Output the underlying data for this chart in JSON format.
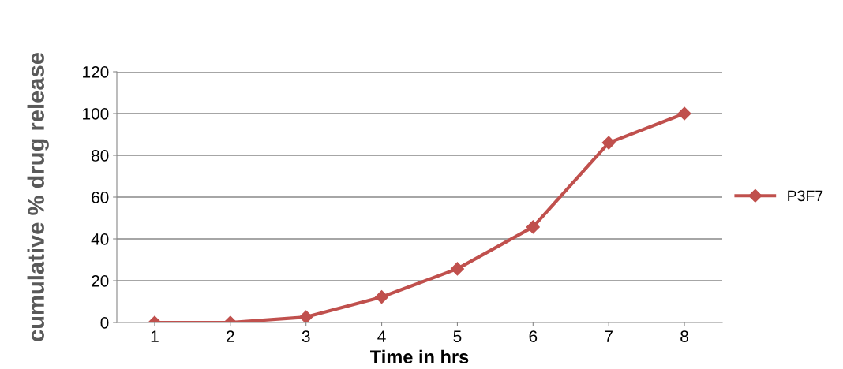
{
  "chart_data": {
    "type": "line",
    "categories": [
      "1",
      "2",
      "3",
      "4",
      "5",
      "6",
      "7",
      "8"
    ],
    "xlabel": "Time in hrs",
    "ylabel": "cumulative % drug release",
    "series": [
      {
        "name": "P3F7",
        "color": "#c0504d",
        "values": [
          0,
          0,
          2.6,
          12.2,
          25.7,
          45.7,
          86,
          100
        ]
      }
    ],
    "ylim": [
      0,
      120
    ],
    "yticks": [
      0,
      20,
      40,
      60,
      80,
      100,
      120
    ],
    "grid": "y",
    "legend": "right",
    "marker": "diamond",
    "line_style": "solid"
  }
}
